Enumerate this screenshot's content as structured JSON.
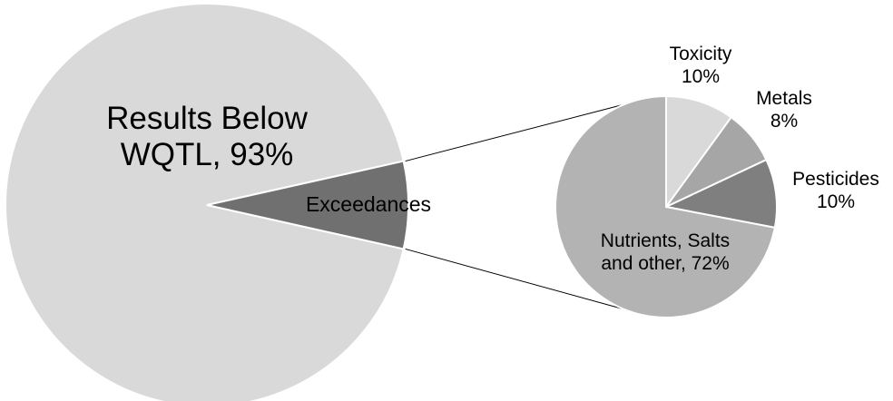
{
  "chart_data": [
    {
      "type": "pie",
      "slices": [
        {
          "label": "Results Below WQTL",
          "value": 93,
          "label_lines": [
            "Results Below",
            "WQTL, 93%"
          ],
          "color": "#d9d9d9"
        },
        {
          "label": "Exceedances",
          "value": 7,
          "label_lines": [
            "Exceedances"
          ],
          "color": "#707070"
        }
      ]
    },
    {
      "type": "pie",
      "slices": [
        {
          "label": "Toxicity",
          "value": 10,
          "label_lines": [
            "Toxicity",
            "10%"
          ],
          "color": "#d9d9d9"
        },
        {
          "label": "Metals",
          "value": 8,
          "label_lines": [
            "Metals",
            "8%"
          ],
          "color": "#a6a6a6"
        },
        {
          "label": "Pesticides",
          "value": 10,
          "label_lines": [
            "Pesticides",
            "10%"
          ],
          "color": "#7f7f7f"
        },
        {
          "label": "Nutrients, Salts and other",
          "value": 72,
          "label_lines": [
            "Nutrients, Salts",
            "and other, 72%"
          ],
          "color": "#b3b3b3"
        }
      ]
    }
  ]
}
